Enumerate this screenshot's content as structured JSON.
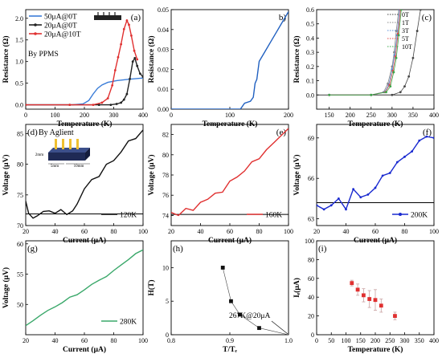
{
  "chart_data": [
    {
      "type": "line",
      "panel_label": "(a)",
      "xlabel": "Temperature (K)",
      "ylabel": "Resistance (Ω)",
      "xlim": [
        0,
        400
      ],
      "ylim": [
        -0.1,
        2.2
      ],
      "xticks": [
        0,
        100,
        200,
        300,
        400
      ],
      "yticks": [
        0.0,
        0.5,
        1.0,
        1.5,
        2.0
      ],
      "annotation": "By PPMS",
      "legend_position": "top-left",
      "series": [
        {
          "name": "50μA@0T",
          "color": "#3b7dd8",
          "marker": "none",
          "x": [
            0,
            100,
            160,
            195,
            215,
            230,
            245,
            260,
            280,
            310,
            350,
            400
          ],
          "y": [
            0.0,
            0.0,
            0.0,
            0.02,
            0.1,
            0.25,
            0.38,
            0.46,
            0.52,
            0.56,
            0.59,
            0.62
          ]
        },
        {
          "name": "20μA@0T",
          "color": "#222222",
          "marker": "dot",
          "x": [
            0,
            150,
            250,
            290,
            310,
            325,
            335,
            345,
            355,
            365,
            372,
            380,
            390,
            400
          ],
          "y": [
            0.0,
            0.0,
            0.0,
            0.0,
            0.02,
            0.05,
            0.12,
            0.25,
            0.6,
            1.0,
            1.08,
            0.9,
            0.72,
            0.65
          ]
        },
        {
          "name": "20μA@10T",
          "color": "#e03030",
          "marker": "dot",
          "x": [
            0,
            150,
            230,
            260,
            280,
            295,
            305,
            315,
            325,
            335,
            345,
            352,
            360,
            370,
            380
          ],
          "y": [
            0.0,
            0.0,
            0.0,
            0.05,
            0.15,
            0.45,
            0.8,
            1.1,
            1.4,
            1.75,
            1.95,
            1.85,
            1.6,
            1.25,
            1.05
          ]
        }
      ]
    },
    {
      "type": "line",
      "panel_label": "b)",
      "xlabel": "Temperature (K)",
      "ylabel": "Resistance (Ω)",
      "xlim": [
        0,
        200
      ],
      "ylim": [
        0,
        0.05
      ],
      "xticks": [
        0,
        100,
        200
      ],
      "yticks": [
        0.0,
        0.01,
        0.02,
        0.03,
        0.04,
        0.05
      ],
      "series": [
        {
          "name": "",
          "color": "#2060c0",
          "marker": "none",
          "x": [
            0,
            50,
            100,
            118,
            125,
            135,
            140,
            143,
            146,
            150,
            160,
            170,
            180,
            190,
            200
          ],
          "y": [
            0.0,
            0.0,
            0.0,
            0.0,
            0.003,
            0.004,
            0.006,
            0.013,
            0.015,
            0.024,
            0.029,
            0.034,
            0.039,
            0.044,
            0.049
          ]
        }
      ]
    },
    {
      "type": "line",
      "panel_label": "(c)",
      "xlabel": "Temperature (K)",
      "ylabel": "Resistance (Ω)",
      "xlim": [
        120,
        400
      ],
      "ylim": [
        -0.1,
        0.6
      ],
      "xticks": [
        150,
        200,
        250,
        300,
        350,
        400
      ],
      "yticks": [
        0.0,
        0.1,
        0.2,
        0.3,
        0.4,
        0.5,
        0.6
      ],
      "legend_position": "top-right",
      "series": [
        {
          "name": "0T",
          "color": "#444444",
          "marker": "dot",
          "x": [
            150,
            250,
            300,
            320,
            330,
            340,
            350,
            360,
            368
          ],
          "y": [
            0,
            0,
            0.0,
            0.02,
            0.06,
            0.13,
            0.26,
            0.45,
            0.6
          ]
        },
        {
          "name": "1T",
          "color": "#888888",
          "marker": "dot",
          "x": [
            150,
            250,
            280,
            290,
            300,
            305,
            310,
            316
          ],
          "y": [
            0,
            0,
            0.02,
            0.08,
            0.2,
            0.3,
            0.45,
            0.6
          ]
        },
        {
          "name": "3T",
          "color": "#5a8fd8",
          "marker": "dot",
          "x": [
            150,
            250,
            282,
            292,
            300,
            306,
            312,
            318
          ],
          "y": [
            0,
            0,
            0.02,
            0.07,
            0.18,
            0.28,
            0.42,
            0.6
          ]
        },
        {
          "name": "5T",
          "color": "#e04a4a",
          "marker": "dot",
          "x": [
            150,
            250,
            284,
            294,
            302,
            308,
            314,
            320
          ],
          "y": [
            0,
            0,
            0.02,
            0.07,
            0.17,
            0.27,
            0.43,
            0.6
          ]
        },
        {
          "name": "10T",
          "color": "#3aa84a",
          "marker": "dot",
          "x": [
            150,
            250,
            286,
            296,
            304,
            310,
            316,
            322
          ],
          "y": [
            0,
            0,
            0.02,
            0.06,
            0.16,
            0.26,
            0.42,
            0.6
          ]
        }
      ]
    },
    {
      "type": "line",
      "panel_label": "(d)",
      "xlabel": "Current (μA)",
      "ylabel": "Voltage (μV)",
      "xlim": [
        20,
        100
      ],
      "ylim": [
        70,
        86.5
      ],
      "xticks": [
        20,
        40,
        60,
        80,
        100
      ],
      "yticks": [
        70,
        75,
        80,
        85
      ],
      "annotation": "By Aglient",
      "inset_labels": [
        "2mm",
        "5mm",
        "10mm"
      ],
      "baseline_y": 71.9,
      "legend_position": "bottom-right",
      "series": [
        {
          "name": "120K",
          "color": "#111111",
          "marker": "line",
          "x": [
            20,
            22,
            25,
            28,
            32,
            36,
            40,
            44,
            48,
            52,
            55,
            60,
            65,
            70,
            75,
            80,
            85,
            90,
            95,
            100
          ],
          "y": [
            74.0,
            72.0,
            71.2,
            71.6,
            72.3,
            72.4,
            72.0,
            72.6,
            71.8,
            72.4,
            73.5,
            76.0,
            77.5,
            78.0,
            80.0,
            80.6,
            82.0,
            83.8,
            84.2,
            85.6
          ]
        }
      ]
    },
    {
      "type": "line",
      "panel_label": "(e)",
      "xlabel": "Current (μA)",
      "ylabel": "Voltage (μV)",
      "xlim": [
        20,
        100
      ],
      "ylim": [
        73,
        83
      ],
      "xticks": [
        20,
        40,
        60,
        80,
        100
      ],
      "yticks": [
        74,
        76,
        78,
        80,
        82
      ],
      "baseline_y": 74.1,
      "legend_position": "bottom-right",
      "series": [
        {
          "name": "160K",
          "color": "#e03030",
          "marker": "line",
          "x": [
            20,
            25,
            30,
            35,
            40,
            45,
            50,
            55,
            60,
            65,
            70,
            75,
            80,
            85,
            90,
            95,
            100
          ],
          "y": [
            74.3,
            74.0,
            74.7,
            74.5,
            75.3,
            75.6,
            76.2,
            76.3,
            77.4,
            77.8,
            78.4,
            79.3,
            79.6,
            80.5,
            81.2,
            81.9,
            82.6
          ]
        }
      ]
    },
    {
      "type": "line",
      "panel_label": "(f)",
      "xlabel": "Current (μA)",
      "ylabel": "Voltage (μV)",
      "xlim": [
        20,
        100
      ],
      "ylim": [
        62.5,
        70
      ],
      "xticks": [
        20,
        40,
        60,
        80,
        100
      ],
      "yticks": [
        63,
        66,
        69
      ],
      "baseline_y": 64.2,
      "legend_position": "bottom-right",
      "series": [
        {
          "name": "200K",
          "color": "#1a2ad0",
          "marker": "dot",
          "x": [
            20,
            25,
            30,
            35,
            40,
            45,
            50,
            55,
            60,
            65,
            70,
            75,
            80,
            85,
            90,
            95,
            100
          ],
          "y": [
            64.0,
            63.7,
            64.0,
            64.5,
            63.7,
            65.2,
            64.6,
            64.8,
            65.3,
            66.2,
            66.4,
            67.2,
            67.6,
            68.0,
            68.8,
            69.1,
            69.0
          ]
        }
      ]
    },
    {
      "type": "line",
      "panel_label": "(g)",
      "xlabel": "Current (μA)",
      "ylabel": "Voltage (μV)",
      "xlim": [
        20,
        100
      ],
      "ylim": [
        45,
        60.5
      ],
      "xticks": [
        20,
        40,
        60,
        80,
        100
      ],
      "yticks": [
        50,
        55,
        60
      ],
      "legend_position": "bottom-right",
      "series": [
        {
          "name": "280K",
          "color": "#3aa86a",
          "marker": "line",
          "x": [
            20,
            25,
            30,
            35,
            40,
            45,
            50,
            55,
            60,
            65,
            70,
            75,
            80,
            85,
            90,
            95,
            100
          ],
          "y": [
            46.5,
            47.3,
            48.2,
            49.0,
            49.6,
            50.3,
            51.2,
            51.6,
            52.4,
            53.3,
            54.0,
            54.6,
            55.6,
            56.5,
            57.4,
            58.4,
            59.0
          ]
        }
      ]
    },
    {
      "type": "scatter",
      "panel_label": "(h)",
      "xlabel": "T/Tₑ",
      "ylabel": "H(T)",
      "xlim": [
        0.8,
        1.0
      ],
      "ylim": [
        0,
        14
      ],
      "xticks": [
        0.8,
        0.9,
        1.0
      ],
      "yticks": [
        0,
        5,
        10
      ],
      "annotation": "267K@20μA",
      "series": [
        {
          "name": "",
          "color": "#111111",
          "marker": "square",
          "x": [
            0.888,
            0.902,
            0.917,
            0.95,
            1.0
          ],
          "y": [
            10.0,
            5.0,
            3.0,
            1.0,
            0.0
          ]
        }
      ]
    },
    {
      "type": "scatter",
      "panel_label": "(i)",
      "xlabel": "Temperature (K)",
      "ylabel": "Iₑ(μA)",
      "xlim": [
        0,
        400
      ],
      "ylim": [
        0,
        100
      ],
      "xticks": [
        0,
        50,
        100,
        150,
        200,
        250,
        300,
        350,
        400
      ],
      "yticks": [
        0,
        20,
        40,
        60,
        80,
        100
      ],
      "series": [
        {
          "name": "",
          "color": "#e03030",
          "marker": "square",
          "x": [
            120,
            140,
            160,
            180,
            200,
            220,
            267
          ],
          "y": [
            55,
            48,
            42,
            38,
            37,
            31,
            20
          ],
          "yerr": [
            3,
            6,
            7,
            9,
            11,
            7,
            4
          ]
        }
      ]
    }
  ]
}
